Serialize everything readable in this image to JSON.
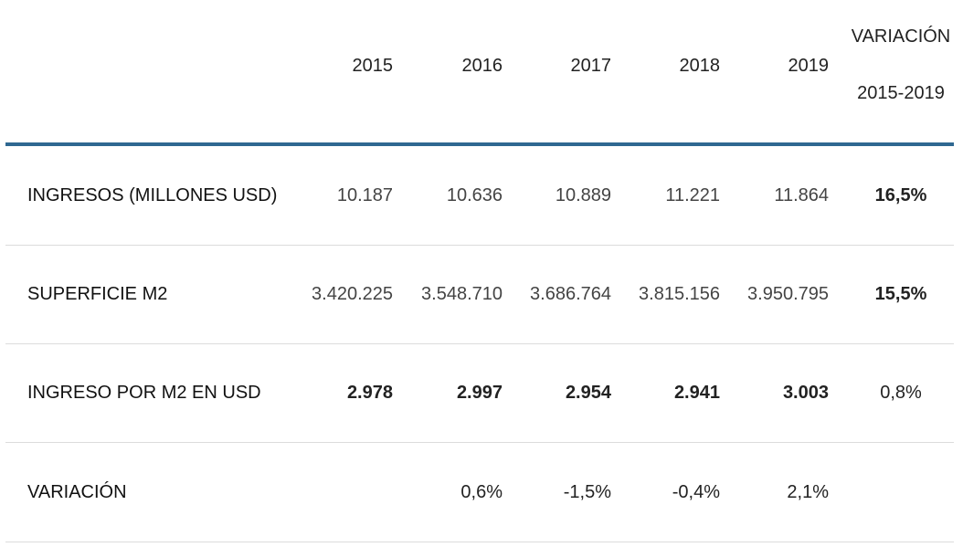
{
  "header": {
    "years": [
      "2015",
      "2016",
      "2017",
      "2018",
      "2019"
    ],
    "variation_line1": "VARIACIÓN",
    "variation_line2": "2015-2019"
  },
  "rows": [
    {
      "label": "INGRESOS (MILLONES USD)",
      "values": [
        "10.187",
        "10.636",
        "10.889",
        "11.221",
        "11.864"
      ],
      "variation": "16,5%"
    },
    {
      "label": "SUPERFICIE M2",
      "values": [
        "3.420.225",
        "3.548.710",
        "3.686.764",
        "3.815.156",
        "3.950.795"
      ],
      "variation": "15,5%"
    },
    {
      "label": "INGRESO POR M2 EN USD",
      "values": [
        "2.978",
        "2.997",
        "2.954",
        "2.941",
        "3.003"
      ],
      "variation": "0,8%"
    },
    {
      "label": "VARIACIÓN",
      "values": [
        "",
        "0,6%",
        "-1,5%",
        "-0,4%",
        "2,1%"
      ],
      "variation": ""
    }
  ],
  "colors": {
    "header_rule": "#2f6891",
    "row_divider": "#dcdcdc",
    "text": "#222222"
  }
}
